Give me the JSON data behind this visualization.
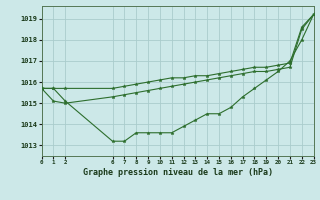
{
  "title": "Graphe pression niveau de la mer (hPa)",
  "bg_color": "#cce8e8",
  "grid_color": "#aacccc",
  "line_color": "#2d6e2d",
  "series": [
    {
      "x": [
        0,
        1,
        2,
        6,
        7,
        8,
        9,
        10,
        11,
        12,
        13,
        14,
        15,
        16,
        17,
        18,
        19,
        20,
        21,
        22,
        23
      ],
      "y": [
        1015.7,
        1015.7,
        1015.1,
        1013.2,
        1013.2,
        1013.6,
        1013.6,
        1013.6,
        1013.6,
        1013.9,
        1014.2,
        1014.5,
        1014.5,
        1014.8,
        1015.3,
        1015.7,
        1016.1,
        1016.5,
        1017.0,
        1018.0,
        1019.2
      ]
    },
    {
      "x": [
        0,
        1,
        2,
        6,
        7,
        8,
        9,
        10,
        11,
        12,
        13,
        14,
        15,
        16,
        17,
        18,
        19,
        20,
        21,
        22,
        23
      ],
      "y": [
        1015.7,
        1015.1,
        1015.0,
        1015.3,
        1015.4,
        1015.5,
        1015.6,
        1015.7,
        1015.8,
        1015.9,
        1016.0,
        1016.1,
        1016.2,
        1016.3,
        1016.4,
        1016.5,
        1016.5,
        1016.6,
        1016.7,
        1018.5,
        1019.2
      ]
    },
    {
      "x": [
        0,
        1,
        2,
        6,
        7,
        8,
        9,
        10,
        11,
        12,
        13,
        14,
        15,
        16,
        17,
        18,
        19,
        20,
        21,
        22,
        23
      ],
      "y": [
        1015.7,
        1015.7,
        1015.7,
        1015.7,
        1015.8,
        1015.9,
        1016.0,
        1016.1,
        1016.2,
        1016.2,
        1016.3,
        1016.3,
        1016.4,
        1016.5,
        1016.6,
        1016.7,
        1016.7,
        1016.8,
        1016.9,
        1018.6,
        1019.2
      ]
    }
  ],
  "yticks": [
    1013,
    1014,
    1015,
    1016,
    1017,
    1018,
    1019
  ],
  "xtick_positions": [
    0,
    1,
    2,
    6,
    7,
    8,
    9,
    10,
    11,
    12,
    13,
    14,
    15,
    16,
    17,
    18,
    19,
    20,
    21,
    22,
    23
  ],
  "xlim": [
    0,
    23
  ],
  "ylim": [
    1012.5,
    1019.6
  ]
}
